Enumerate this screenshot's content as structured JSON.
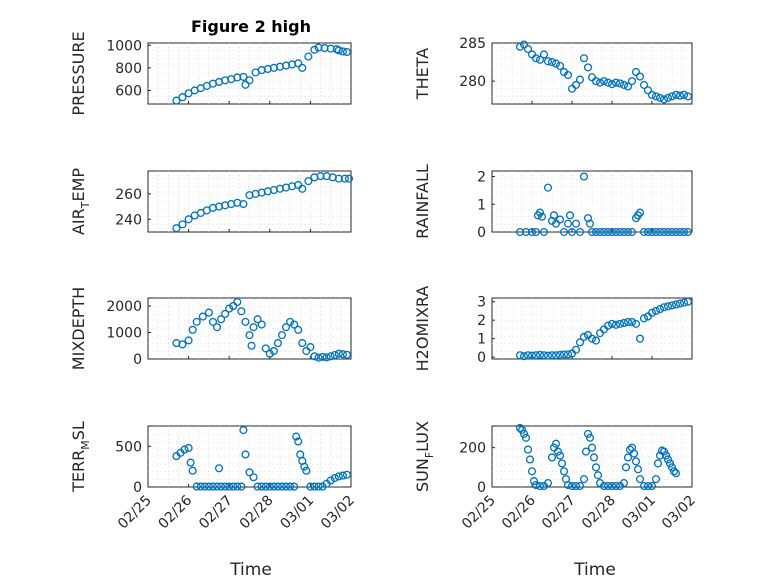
{
  "figure": {
    "title": "Figure 2 high",
    "xlabel": "Time"
  },
  "colors": {
    "marker": "#0072BD",
    "axis": "#262626",
    "grid": "#d9d9d9"
  },
  "chart_data": [
    {
      "type": "scatter",
      "title": "Figure 2 high",
      "ylabel_main": "PRESSURE",
      "ylabel_sub": "",
      "ylabel_after": "",
      "xlim": [
        "02/25",
        "03/02"
      ],
      "xticks": [],
      "ylim": [
        480,
        1020
      ],
      "yticks": [
        600,
        800,
        1000
      ],
      "grid": true,
      "x": [
        0.7,
        0.85,
        1.0,
        1.15,
        1.3,
        1.45,
        1.6,
        1.75,
        1.9,
        2.05,
        2.2,
        2.35,
        2.4,
        2.5,
        2.65,
        2.8,
        2.95,
        3.1,
        3.25,
        3.4,
        3.55,
        3.7,
        3.8,
        3.95,
        4.1,
        4.2,
        4.35,
        4.5,
        4.65,
        4.7,
        4.8,
        4.9
      ],
      "y": [
        510,
        540,
        575,
        600,
        620,
        640,
        660,
        675,
        690,
        700,
        715,
        720,
        650,
        690,
        760,
        780,
        790,
        800,
        810,
        820,
        830,
        840,
        800,
        900,
        960,
        980,
        975,
        970,
        965,
        955,
        945,
        940
      ]
    },
    {
      "type": "scatter",
      "title": "",
      "ylabel_main": "THETA",
      "ylabel_sub": "",
      "ylabel_after": "",
      "xlim": [
        "02/25",
        "03/02"
      ],
      "xticks": [],
      "ylim": [
        277,
        285
      ],
      "yticks": [
        280,
        285
      ],
      "grid": true,
      "x": [
        0.7,
        0.8,
        0.9,
        1.0,
        1.1,
        1.2,
        1.3,
        1.4,
        1.5,
        1.6,
        1.7,
        1.8,
        1.9,
        2.0,
        2.1,
        2.2,
        2.3,
        2.4,
        2.5,
        2.6,
        2.7,
        2.8,
        2.9,
        3.0,
        3.1,
        3.2,
        3.3,
        3.4,
        3.5,
        3.6,
        3.7,
        3.8,
        3.9,
        4.0,
        4.1,
        4.2,
        4.3,
        4.4,
        4.5,
        4.6,
        4.7,
        4.8,
        4.9
      ],
      "y": [
        284.5,
        284.8,
        284.2,
        283.5,
        283,
        282.8,
        283.5,
        282.6,
        282.5,
        282.3,
        282,
        281.2,
        280.8,
        279,
        279.5,
        280.2,
        283,
        281.8,
        280.5,
        280,
        279.8,
        280,
        279.8,
        279.6,
        279.8,
        279.7,
        279.5,
        279.3,
        280,
        281.2,
        280.6,
        279.5,
        278.8,
        278.2,
        278,
        277.8,
        277.6,
        277.8,
        278,
        278.2,
        278.1,
        278.2,
        278
      ]
    },
    {
      "type": "scatter",
      "title": "",
      "ylabel_main": "AIR",
      "ylabel_sub": "T",
      "ylabel_after": "EMP",
      "xlim": [
        "02/25",
        "03/02"
      ],
      "xticks": [],
      "ylim": [
        230,
        278
      ],
      "yticks": [
        240,
        260
      ],
      "grid": true,
      "x": [
        0.7,
        0.85,
        1.0,
        1.15,
        1.3,
        1.45,
        1.6,
        1.75,
        1.9,
        2.05,
        2.2,
        2.35,
        2.5,
        2.65,
        2.8,
        2.95,
        3.1,
        3.25,
        3.4,
        3.55,
        3.7,
        3.8,
        3.95,
        4.1,
        4.25,
        4.4,
        4.55,
        4.7,
        4.85,
        4.95
      ],
      "y": [
        233,
        236,
        240,
        243,
        245,
        247,
        249,
        250,
        251,
        252,
        253,
        252,
        259,
        260,
        261,
        262,
        263,
        264,
        265,
        266,
        267,
        264,
        270,
        273,
        274,
        274,
        273,
        272,
        272,
        272
      ]
    },
    {
      "type": "scatter",
      "title": "",
      "ylabel_main": "RAINFALL",
      "ylabel_sub": "",
      "ylabel_after": "",
      "xlim": [
        "02/25",
        "03/02"
      ],
      "xticks": [],
      "ylim": [
        0,
        2.2
      ],
      "yticks": [
        0,
        1,
        2
      ],
      "grid": true,
      "x": [
        0.7,
        0.85,
        1.0,
        1.1,
        1.15,
        1.2,
        1.25,
        1.3,
        1.4,
        1.5,
        1.55,
        1.6,
        1.7,
        1.8,
        1.9,
        1.95,
        2.0,
        2.1,
        2.2,
        2.3,
        2.4,
        2.45,
        2.5,
        2.6,
        2.7,
        2.8,
        2.9,
        3.0,
        3.1,
        3.2,
        3.3,
        3.4,
        3.5,
        3.6,
        3.65,
        3.7,
        3.8,
        3.9,
        4.0,
        4.1,
        4.2,
        4.3,
        4.4,
        4.5,
        4.6,
        4.7,
        4.8,
        4.9
      ],
      "y": [
        0,
        0,
        0,
        0,
        0.6,
        0.7,
        0.55,
        0,
        1.6,
        0.4,
        0.6,
        0.3,
        0.45,
        0,
        0.3,
        0.6,
        0,
        0.3,
        0,
        2.0,
        0.5,
        0.3,
        0,
        0,
        0,
        0,
        0,
        0,
        0,
        0,
        0,
        0,
        0,
        0.5,
        0.6,
        0.7,
        0,
        0,
        0,
        0,
        0,
        0,
        0,
        0,
        0,
        0,
        0,
        0
      ]
    },
    {
      "type": "scatter",
      "title": "",
      "ylabel_main": "MIXDEPTH",
      "ylabel_sub": "",
      "ylabel_after": "",
      "xlim": [
        "02/25",
        "03/02"
      ],
      "xticks": [],
      "ylim": [
        0,
        2300
      ],
      "yticks": [
        0,
        1000,
        2000
      ],
      "grid": true,
      "x": [
        0.7,
        0.85,
        1.0,
        1.1,
        1.2,
        1.35,
        1.5,
        1.6,
        1.7,
        1.8,
        1.9,
        2.0,
        2.1,
        2.2,
        2.3,
        2.4,
        2.5,
        2.55,
        2.6,
        2.7,
        2.8,
        2.9,
        3.0,
        3.1,
        3.2,
        3.3,
        3.4,
        3.5,
        3.6,
        3.7,
        3.8,
        3.9,
        4.0,
        4.1,
        4.2,
        4.3,
        4.4,
        4.5,
        4.6,
        4.7,
        4.8,
        4.9
      ],
      "y": [
        600,
        550,
        700,
        1100,
        1400,
        1600,
        1750,
        1400,
        1200,
        1500,
        1700,
        1900,
        2000,
        2150,
        1800,
        1400,
        900,
        500,
        1200,
        1500,
        1300,
        400,
        200,
        300,
        600,
        900,
        1200,
        1400,
        1300,
        1100,
        600,
        300,
        450,
        100,
        50,
        80,
        60,
        100,
        150,
        200,
        180,
        160
      ]
    },
    {
      "type": "scatter",
      "title": "",
      "ylabel_main": "H2OMIXRA",
      "ylabel_sub": "",
      "ylabel_after": "",
      "xlim": [
        "02/25",
        "03/02"
      ],
      "xticks": [],
      "ylim": [
        -0.1,
        3.2
      ],
      "yticks": [
        0,
        1,
        2,
        3
      ],
      "grid": true,
      "x": [
        0.7,
        0.8,
        0.9,
        1.0,
        1.1,
        1.2,
        1.3,
        1.4,
        1.5,
        1.6,
        1.7,
        1.8,
        1.9,
        2.0,
        2.1,
        2.2,
        2.3,
        2.4,
        2.5,
        2.6,
        2.7,
        2.8,
        2.9,
        3.0,
        3.1,
        3.2,
        3.3,
        3.4,
        3.5,
        3.6,
        3.7,
        3.8,
        3.9,
        4.0,
        4.1,
        4.2,
        4.3,
        4.4,
        4.5,
        4.6,
        4.7,
        4.8,
        4.9
      ],
      "y": [
        0.1,
        0.05,
        0.1,
        0.08,
        0.1,
        0.12,
        0.1,
        0.08,
        0.1,
        0.1,
        0.12,
        0.15,
        0.15,
        0.2,
        0.4,
        0.8,
        1.1,
        1.2,
        1.0,
        0.9,
        1.3,
        1.5,
        1.7,
        1.8,
        1.75,
        1.8,
        1.85,
        1.9,
        1.9,
        1.8,
        1.0,
        2.1,
        2.2,
        2.4,
        2.5,
        2.6,
        2.7,
        2.75,
        2.8,
        2.85,
        2.9,
        2.95,
        3.0
      ]
    },
    {
      "type": "scatter",
      "title": "",
      "ylabel_main": "TERR",
      "ylabel_sub": "M",
      "ylabel_after": "SL",
      "xlim": [
        "02/25",
        "03/02"
      ],
      "xticks": [
        "02/25",
        "02/26",
        "02/27",
        "02/28",
        "03/01",
        "03/02"
      ],
      "ylim": [
        0,
        750
      ],
      "yticks": [
        0,
        500
      ],
      "grid": true,
      "x": [
        0.7,
        0.8,
        0.9,
        1.0,
        1.05,
        1.1,
        1.2,
        1.3,
        1.4,
        1.5,
        1.6,
        1.7,
        1.75,
        1.8,
        1.9,
        2.0,
        2.1,
        2.2,
        2.3,
        2.35,
        2.4,
        2.5,
        2.6,
        2.7,
        2.8,
        2.9,
        3.0,
        3.1,
        3.2,
        3.3,
        3.4,
        3.5,
        3.6,
        3.65,
        3.7,
        3.75,
        3.8,
        3.85,
        3.9,
        4.0,
        4.1,
        4.2,
        4.3,
        4.4,
        4.5,
        4.6,
        4.7,
        4.8,
        4.9
      ],
      "y": [
        380,
        420,
        460,
        480,
        300,
        200,
        5,
        5,
        5,
        5,
        5,
        5,
        230,
        5,
        5,
        5,
        5,
        5,
        5,
        700,
        400,
        180,
        120,
        5,
        5,
        5,
        5,
        5,
        5,
        5,
        5,
        5,
        5,
        620,
        560,
        400,
        320,
        250,
        200,
        5,
        5,
        5,
        5,
        40,
        80,
        110,
        130,
        140,
        150
      ]
    },
    {
      "type": "scatter",
      "title": "",
      "ylabel_main": "SUN",
      "ylabel_sub": "F",
      "ylabel_after": "LUX",
      "xlim": [
        "02/25",
        "03/02"
      ],
      "xticks": [
        "02/25",
        "02/26",
        "02/27",
        "02/28",
        "03/01",
        "03/02"
      ],
      "ylim": [
        0,
        310
      ],
      "yticks": [
        0,
        200
      ],
      "grid": true,
      "x": [
        0.7,
        0.75,
        0.8,
        0.85,
        0.9,
        0.95,
        1.0,
        1.05,
        1.1,
        1.2,
        1.3,
        1.4,
        1.5,
        1.55,
        1.6,
        1.65,
        1.7,
        1.75,
        1.8,
        1.85,
        1.9,
        2.0,
        2.1,
        2.2,
        2.3,
        2.35,
        2.4,
        2.45,
        2.5,
        2.55,
        2.6,
        2.65,
        2.7,
        2.8,
        2.9,
        3.0,
        3.1,
        3.2,
        3.3,
        3.35,
        3.4,
        3.45,
        3.5,
        3.55,
        3.6,
        3.65,
        3.7,
        3.8,
        3.9,
        4.0,
        4.1,
        4.15,
        4.2,
        4.25,
        4.3,
        4.35,
        4.4,
        4.45,
        4.5,
        4.55,
        4.6
      ],
      "y": [
        300,
        290,
        270,
        250,
        190,
        140,
        80,
        30,
        10,
        5,
        5,
        20,
        150,
        200,
        220,
        180,
        160,
        120,
        80,
        40,
        10,
        5,
        5,
        5,
        40,
        180,
        270,
        250,
        200,
        150,
        100,
        60,
        20,
        5,
        5,
        5,
        5,
        5,
        20,
        100,
        150,
        190,
        200,
        170,
        130,
        90,
        40,
        5,
        5,
        5,
        40,
        120,
        160,
        185,
        180,
        160,
        140,
        120,
        100,
        80,
        70
      ]
    }
  ]
}
